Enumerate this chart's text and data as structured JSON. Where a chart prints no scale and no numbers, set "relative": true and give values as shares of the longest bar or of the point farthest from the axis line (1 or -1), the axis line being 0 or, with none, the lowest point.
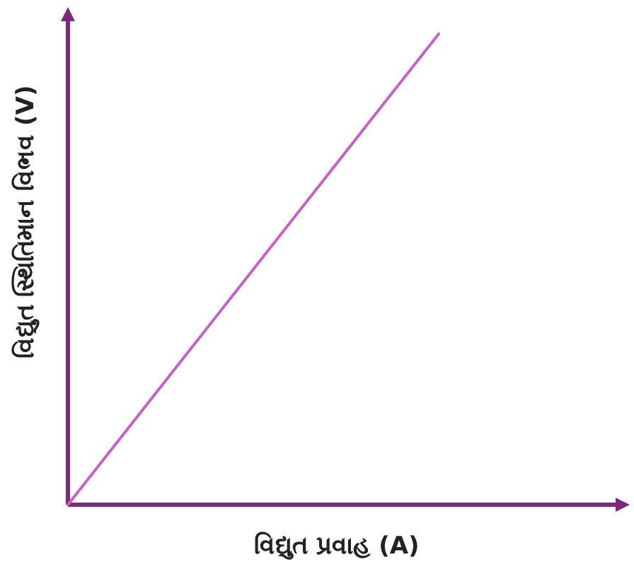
{
  "chart_data": {
    "type": "line",
    "xlabel": "વિદ્યુત પ્રવાહ (A)",
    "ylabel": "વિદ્યુત સ્થિતિમાન વિભવ (V)",
    "categories": [
      null,
      null
    ],
    "series": [
      {
        "color": "#c462c8",
        "values": [
          0,
          1
        ]
      }
    ],
    "relative": true
  }
}
